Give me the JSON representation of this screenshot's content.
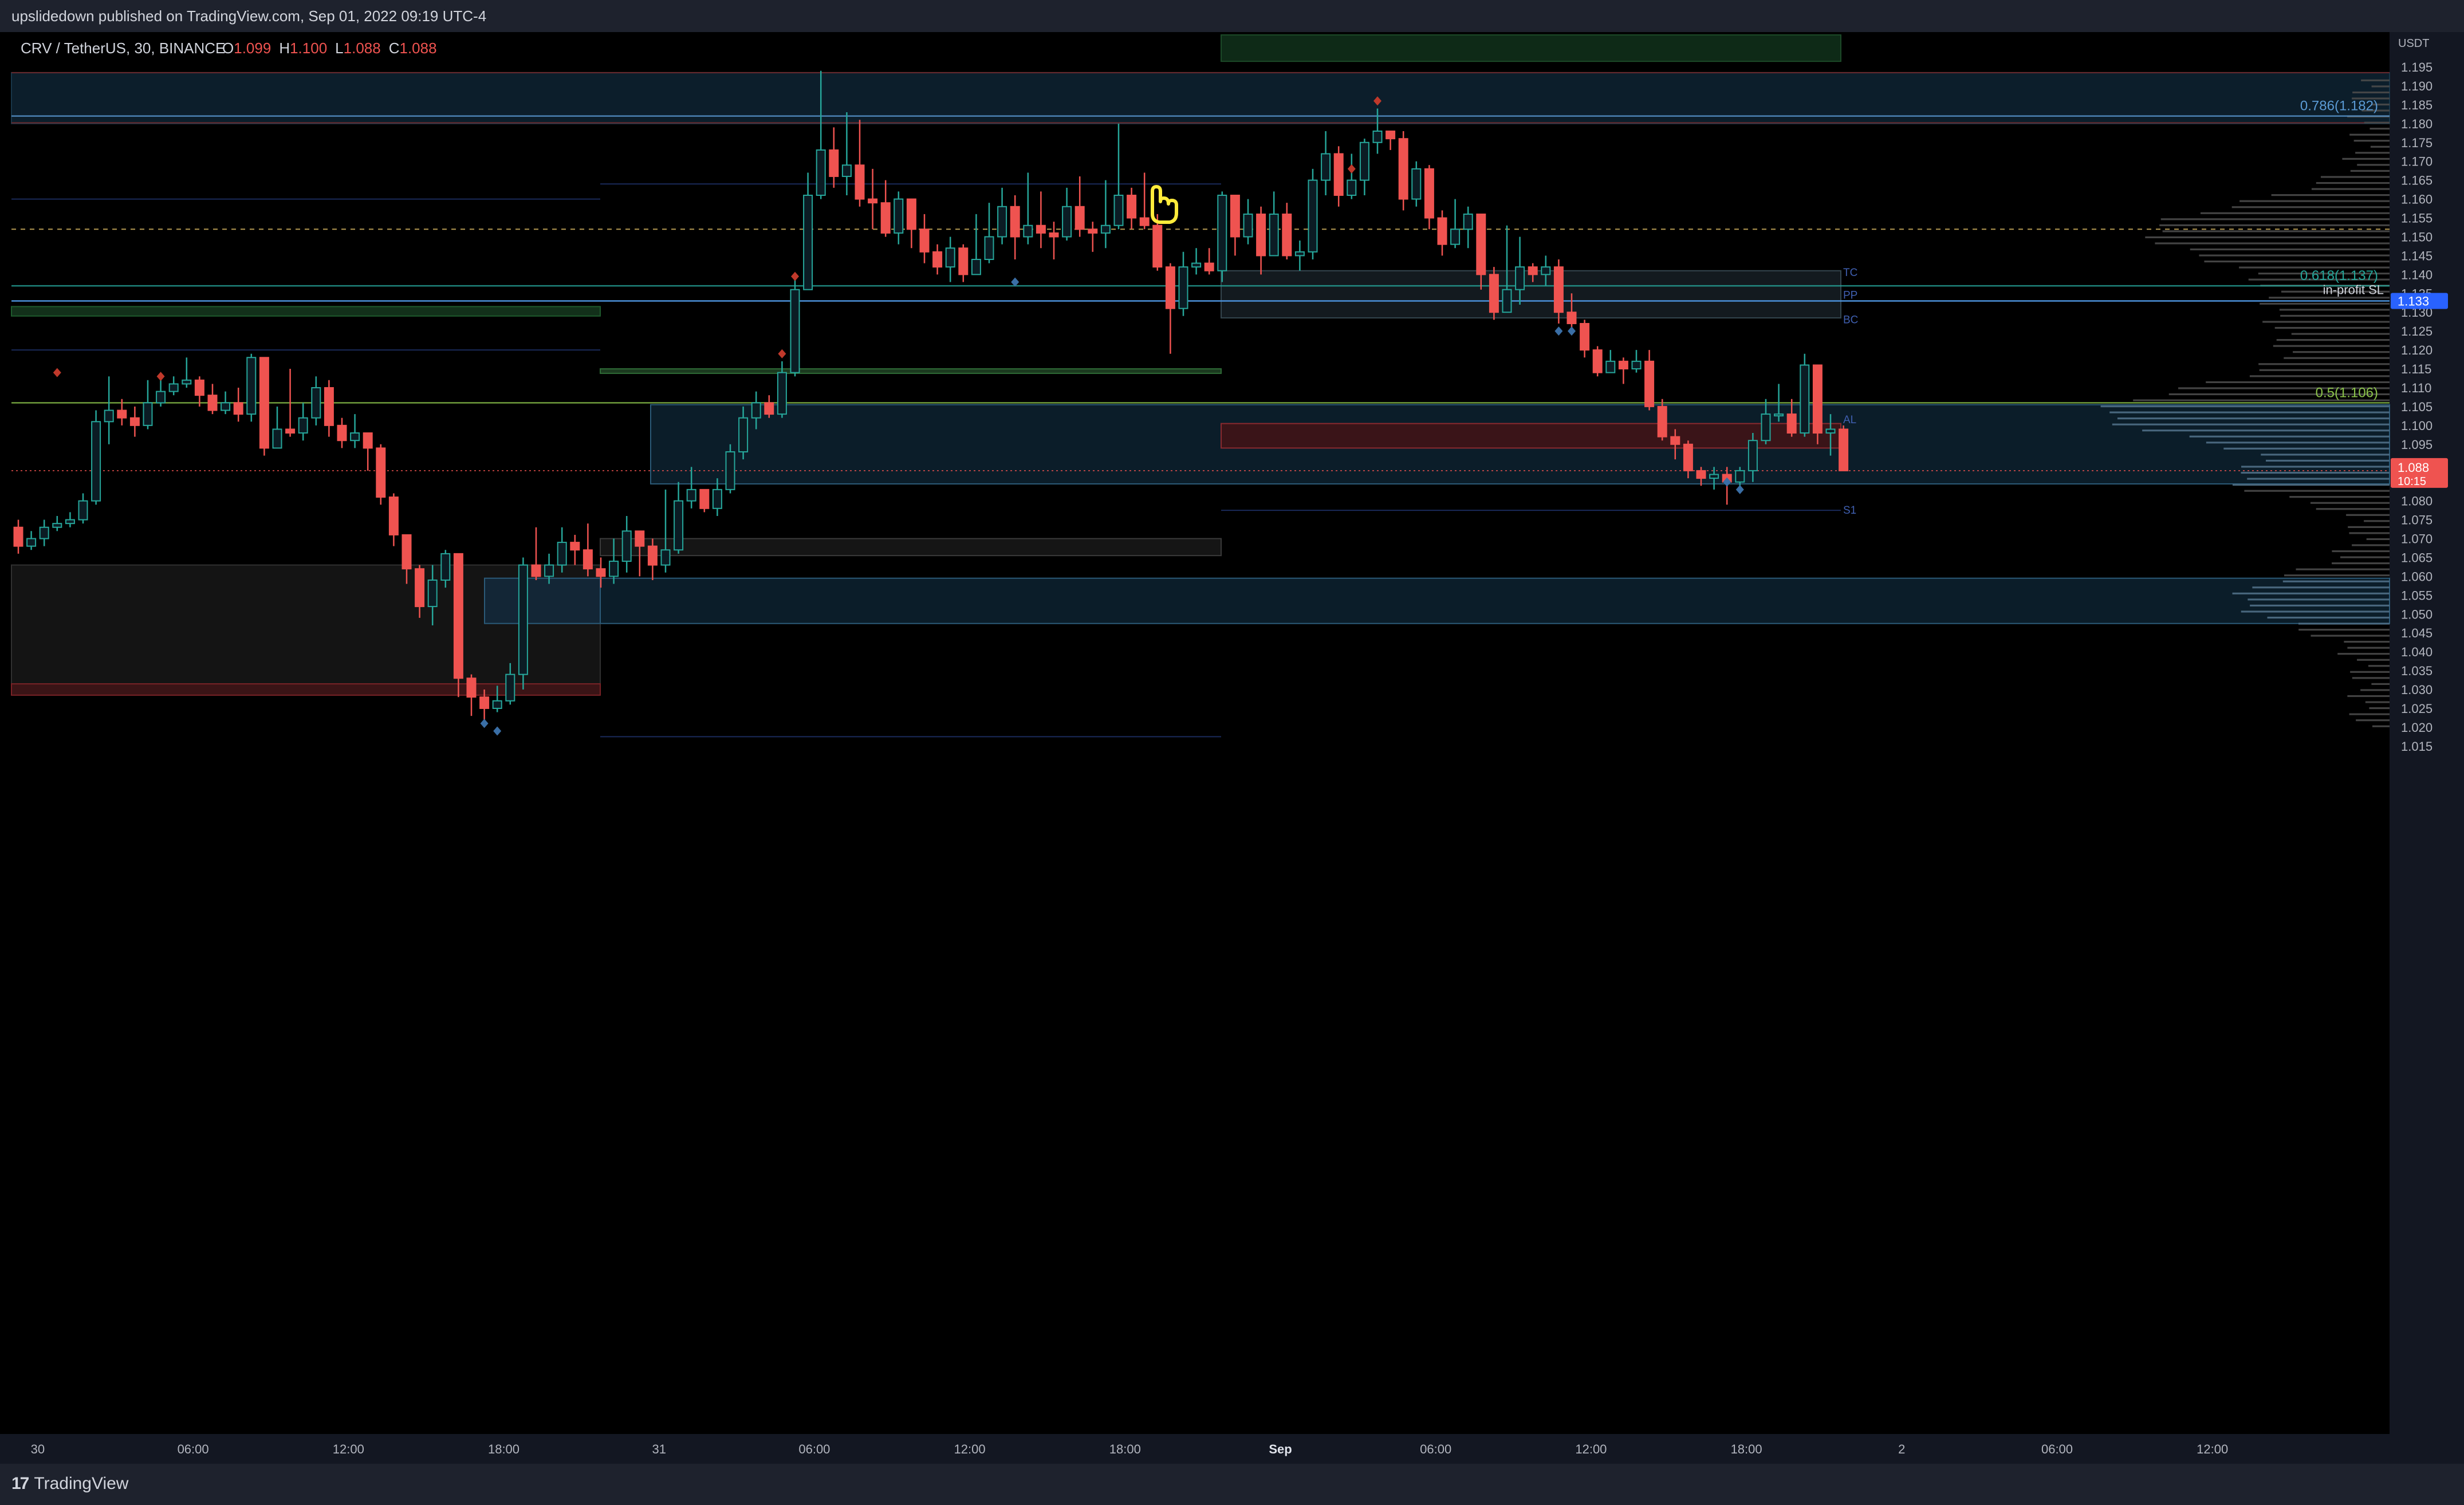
{
  "header": {
    "published": "upslidedown published on TradingView.com, Sep 01, 2022 09:19 UTC-4"
  },
  "legend": {
    "symbol": "CRV / TetherUS, 30, BINANCE",
    "o_label": "O",
    "o_value": "1.099",
    "h_label": "H",
    "h_value": "1.100",
    "l_label": "L",
    "l_value": "1.088",
    "c_label": "C",
    "c_value": "1.088"
  },
  "footer": {
    "brand": "TradingView"
  },
  "colors": {
    "up": "#26a69a",
    "down": "#ef5350",
    "bg": "#000000",
    "panel": "#131722",
    "text": "#b2b5be",
    "blue_zone": "#0d2433",
    "blue_line": "#5b8fb9"
  },
  "chart_data": {
    "type": "candlestick",
    "currency": "USDT",
    "ylim": [
      1.0125,
      1.1975
    ],
    "y_ticks": [
      "1.195",
      "1.190",
      "1.185",
      "1.180",
      "1.175",
      "1.170",
      "1.165",
      "1.160",
      "1.155",
      "1.150",
      "1.145",
      "1.140",
      "1.135",
      "1.130",
      "1.125",
      "1.120",
      "1.115",
      "1.110",
      "1.105",
      "1.100",
      "1.095",
      "1.090",
      "1.085",
      "1.080",
      "1.075",
      "1.070",
      "1.065",
      "1.060",
      "1.055",
      "1.050",
      "1.045",
      "1.040",
      "1.035",
      "1.030",
      "1.025",
      "1.020",
      "1.015"
    ],
    "x_ticks": [
      {
        "label": "30",
        "i": 1.5,
        "bold": false
      },
      {
        "label": "06:00",
        "i": 13.5,
        "bold": false
      },
      {
        "label": "12:00",
        "i": 25.5,
        "bold": false
      },
      {
        "label": "18:00",
        "i": 37.5,
        "bold": false
      },
      {
        "label": "31",
        "i": 49.5,
        "bold": false
      },
      {
        "label": "06:00",
        "i": 61.5,
        "bold": false
      },
      {
        "label": "12:00",
        "i": 73.5,
        "bold": false
      },
      {
        "label": "18:00",
        "i": 85.5,
        "bold": false
      },
      {
        "label": "Sep",
        "i": 97.5,
        "bold": true
      },
      {
        "label": "06:00",
        "i": 109.5,
        "bold": false
      },
      {
        "label": "12:00",
        "i": 121.5,
        "bold": false
      },
      {
        "label": "18:00",
        "i": 133.5,
        "bold": false
      },
      {
        "label": "2",
        "i": 145.5,
        "bold": false
      },
      {
        "label": "06:00",
        "i": 157.5,
        "bold": false
      },
      {
        "label": "12:00",
        "i": 169.5,
        "bold": false
      }
    ],
    "candles": [
      [
        1.073,
        1.068,
        1.075,
        1.066
      ],
      [
        1.068,
        1.07,
        1.072,
        1.067
      ],
      [
        1.07,
        1.073,
        1.075,
        1.068
      ],
      [
        1.073,
        1.074,
        1.076,
        1.072
      ],
      [
        1.074,
        1.075,
        1.077,
        1.073
      ],
      [
        1.075,
        1.08,
        1.082,
        1.074
      ],
      [
        1.08,
        1.101,
        1.104,
        1.079
      ],
      [
        1.101,
        1.104,
        1.113,
        1.095
      ],
      [
        1.104,
        1.102,
        1.107,
        1.1
      ],
      [
        1.102,
        1.1,
        1.105,
        1.097
      ],
      [
        1.1,
        1.106,
        1.112,
        1.099
      ],
      [
        1.106,
        1.109,
        1.113,
        1.105
      ],
      [
        1.109,
        1.111,
        1.113,
        1.108
      ],
      [
        1.111,
        1.112,
        1.118,
        1.11
      ],
      [
        1.112,
        1.108,
        1.113,
        1.105
      ],
      [
        1.108,
        1.104,
        1.111,
        1.103
      ],
      [
        1.104,
        1.106,
        1.109,
        1.103
      ],
      [
        1.106,
        1.103,
        1.11,
        1.101
      ],
      [
        1.103,
        1.118,
        1.119,
        1.101
      ],
      [
        1.118,
        1.094,
        1.117,
        1.092
      ],
      [
        1.094,
        1.099,
        1.105,
        1.096
      ],
      [
        1.099,
        1.098,
        1.115,
        1.097
      ],
      [
        1.098,
        1.102,
        1.106,
        1.096
      ],
      [
        1.102,
        1.11,
        1.113,
        1.1
      ],
      [
        1.11,
        1.1,
        1.112,
        1.097
      ],
      [
        1.1,
        1.096,
        1.102,
        1.094
      ],
      [
        1.096,
        1.098,
        1.103,
        1.094
      ],
      [
        1.098,
        1.094,
        1.098,
        1.088
      ],
      [
        1.094,
        1.081,
        1.095,
        1.079
      ],
      [
        1.081,
        1.071,
        1.082,
        1.068
      ],
      [
        1.071,
        1.062,
        1.071,
        1.058
      ],
      [
        1.062,
        1.052,
        1.063,
        1.049
      ],
      [
        1.052,
        1.059,
        1.063,
        1.047
      ],
      [
        1.059,
        1.066,
        1.067,
        1.057
      ],
      [
        1.066,
        1.033,
        1.066,
        1.028
      ],
      [
        1.033,
        1.028,
        1.034,
        1.023
      ],
      [
        1.028,
        1.025,
        1.03,
        1.022
      ],
      [
        1.025,
        1.027,
        1.031,
        1.024
      ],
      [
        1.027,
        1.034,
        1.037,
        1.026
      ],
      [
        1.034,
        1.063,
        1.065,
        1.03
      ],
      [
        1.063,
        1.06,
        1.073,
        1.059
      ],
      [
        1.06,
        1.063,
        1.066,
        1.058
      ],
      [
        1.063,
        1.069,
        1.073,
        1.061
      ],
      [
        1.069,
        1.067,
        1.071,
        1.063
      ],
      [
        1.067,
        1.062,
        1.074,
        1.06
      ],
      [
        1.062,
        1.06,
        1.065,
        1.057
      ],
      [
        1.06,
        1.064,
        1.07,
        1.058
      ],
      [
        1.064,
        1.072,
        1.076,
        1.061
      ],
      [
        1.072,
        1.068,
        1.072,
        1.06
      ],
      [
        1.068,
        1.063,
        1.07,
        1.059
      ],
      [
        1.063,
        1.067,
        1.083,
        1.061
      ],
      [
        1.067,
        1.08,
        1.085,
        1.066
      ],
      [
        1.08,
        1.083,
        1.089,
        1.078
      ],
      [
        1.083,
        1.078,
        1.083,
        1.077
      ],
      [
        1.078,
        1.083,
        1.086,
        1.076
      ],
      [
        1.083,
        1.093,
        1.095,
        1.082
      ],
      [
        1.093,
        1.102,
        1.105,
        1.091
      ],
      [
        1.102,
        1.106,
        1.109,
        1.099
      ],
      [
        1.106,
        1.103,
        1.108,
        1.102
      ],
      [
        1.103,
        1.114,
        1.117,
        1.102
      ],
      [
        1.114,
        1.136,
        1.139,
        1.113
      ],
      [
        1.136,
        1.161,
        1.167,
        1.137
      ],
      [
        1.161,
        1.173,
        1.194,
        1.16
      ],
      [
        1.173,
        1.166,
        1.179,
        1.163
      ],
      [
        1.166,
        1.169,
        1.183,
        1.161
      ],
      [
        1.169,
        1.16,
        1.181,
        1.158
      ],
      [
        1.16,
        1.159,
        1.168,
        1.152
      ],
      [
        1.159,
        1.151,
        1.165,
        1.15
      ],
      [
        1.151,
        1.16,
        1.162,
        1.148
      ],
      [
        1.16,
        1.152,
        1.158,
        1.147
      ],
      [
        1.152,
        1.146,
        1.156,
        1.143
      ],
      [
        1.146,
        1.142,
        1.148,
        1.14
      ],
      [
        1.142,
        1.147,
        1.15,
        1.138
      ],
      [
        1.147,
        1.14,
        1.148,
        1.138
      ],
      [
        1.14,
        1.144,
        1.156,
        1.141
      ],
      [
        1.144,
        1.15,
        1.159,
        1.143
      ],
      [
        1.15,
        1.158,
        1.163,
        1.148
      ],
      [
        1.158,
        1.15,
        1.161,
        1.144
      ],
      [
        1.15,
        1.153,
        1.167,
        1.148
      ],
      [
        1.153,
        1.151,
        1.162,
        1.147
      ],
      [
        1.151,
        1.15,
        1.154,
        1.144
      ],
      [
        1.15,
        1.158,
        1.163,
        1.149
      ],
      [
        1.158,
        1.152,
        1.166,
        1.15
      ],
      [
        1.152,
        1.151,
        1.154,
        1.146
      ],
      [
        1.151,
        1.153,
        1.165,
        1.147
      ],
      [
        1.153,
        1.161,
        1.18,
        1.152
      ],
      [
        1.161,
        1.155,
        1.163,
        1.152
      ],
      [
        1.155,
        1.153,
        1.167,
        1.152
      ],
      [
        1.153,
        1.142,
        1.156,
        1.141
      ],
      [
        1.142,
        1.131,
        1.143,
        1.119
      ],
      [
        1.131,
        1.142,
        1.146,
        1.129
      ],
      [
        1.142,
        1.143,
        1.147,
        1.14
      ],
      [
        1.143,
        1.141,
        1.147,
        1.14
      ],
      [
        1.141,
        1.161,
        1.162,
        1.138
      ],
      [
        1.161,
        1.15,
        1.161,
        1.145
      ],
      [
        1.15,
        1.156,
        1.16,
        1.148
      ],
      [
        1.156,
        1.145,
        1.158,
        1.14
      ],
      [
        1.145,
        1.156,
        1.162,
        1.145
      ],
      [
        1.156,
        1.145,
        1.159,
        1.144
      ],
      [
        1.145,
        1.146,
        1.149,
        1.141
      ],
      [
        1.146,
        1.165,
        1.168,
        1.144
      ],
      [
        1.165,
        1.172,
        1.178,
        1.161
      ],
      [
        1.172,
        1.161,
        1.174,
        1.158
      ],
      [
        1.161,
        1.165,
        1.172,
        1.16
      ],
      [
        1.165,
        1.175,
        1.176,
        1.161
      ],
      [
        1.175,
        1.178,
        1.184,
        1.172
      ],
      [
        1.178,
        1.176,
        1.178,
        1.173
      ],
      [
        1.176,
        1.16,
        1.178,
        1.157
      ],
      [
        1.16,
        1.168,
        1.17,
        1.158
      ],
      [
        1.168,
        1.155,
        1.169,
        1.152
      ],
      [
        1.155,
        1.148,
        1.157,
        1.145
      ],
      [
        1.148,
        1.152,
        1.16,
        1.147
      ],
      [
        1.152,
        1.156,
        1.158,
        1.147
      ],
      [
        1.156,
        1.14,
        1.156,
        1.136
      ],
      [
        1.14,
        1.13,
        1.142,
        1.128
      ],
      [
        1.13,
        1.136,
        1.153,
        1.134
      ],
      [
        1.136,
        1.142,
        1.15,
        1.132
      ],
      [
        1.142,
        1.14,
        1.143,
        1.138
      ],
      [
        1.14,
        1.142,
        1.145,
        1.137
      ],
      [
        1.142,
        1.13,
        1.144,
        1.127
      ],
      [
        1.13,
        1.127,
        1.135,
        1.125
      ],
      [
        1.127,
        1.12,
        1.128,
        1.118
      ],
      [
        1.12,
        1.114,
        1.121,
        1.113
      ],
      [
        1.114,
        1.117,
        1.12,
        1.114
      ],
      [
        1.117,
        1.115,
        1.118,
        1.111
      ],
      [
        1.115,
        1.117,
        1.12,
        1.114
      ],
      [
        1.117,
        1.105,
        1.12,
        1.104
      ],
      [
        1.105,
        1.097,
        1.107,
        1.096
      ],
      [
        1.097,
        1.095,
        1.099,
        1.091
      ],
      [
        1.095,
        1.088,
        1.096,
        1.086
      ],
      [
        1.088,
        1.086,
        1.089,
        1.084
      ],
      [
        1.086,
        1.087,
        1.089,
        1.083
      ],
      [
        1.087,
        1.085,
        1.089,
        1.079
      ],
      [
        1.085,
        1.088,
        1.089,
        1.084
      ],
      [
        1.088,
        1.096,
        1.098,
        1.085
      ],
      [
        1.096,
        1.103,
        1.107,
        1.095
      ],
      [
        1.103,
        1.103,
        1.111,
        1.101
      ],
      [
        1.103,
        1.098,
        1.107,
        1.097
      ],
      [
        1.098,
        1.116,
        1.119,
        1.097
      ],
      [
        1.116,
        1.098,
        1.116,
        1.095
      ],
      [
        1.098,
        1.099,
        1.103,
        1.092
      ],
      [
        1.099,
        1.088,
        1.1,
        1.088
      ]
    ],
    "price_levels": [
      {
        "name": "fib-0786",
        "price": 1.182,
        "label": "0.786(1.182)",
        "color": "#5b9bd5"
      },
      {
        "name": "fib-0618",
        "price": 1.137,
        "label": "0.618(1.137)",
        "color": "#26a69a"
      },
      {
        "name": "fib-05",
        "price": 1.106,
        "label": "0.5(1.106)",
        "color": "#8bc34a"
      },
      {
        "name": "in-profit-sl",
        "price": 1.133,
        "label": "in-profit SL",
        "color": "#4a90d9"
      }
    ],
    "pivot_labels": [
      {
        "label": "TC",
        "price": 1.1405
      },
      {
        "label": "PP",
        "price": 1.1345
      },
      {
        "label": "BC",
        "price": 1.128
      },
      {
        "label": "AL",
        "price": 1.1015
      },
      {
        "label": "S1",
        "price": 1.0775
      }
    ],
    "current_price": {
      "value": "1.088",
      "countdown": "10:15"
    },
    "markers": [
      {
        "i": 3,
        "price": 1.114,
        "kind": "sell"
      },
      {
        "i": 11,
        "price": 1.113,
        "kind": "sell"
      },
      {
        "i": 60,
        "price": 1.1395,
        "kind": "sell"
      },
      {
        "i": 59,
        "price": 1.119,
        "kind": "sell"
      },
      {
        "i": 105,
        "price": 1.186,
        "kind": "sell"
      },
      {
        "i": 103,
        "price": 1.168,
        "kind": "sell"
      },
      {
        "i": 36,
        "price": 1.021,
        "kind": "buy"
      },
      {
        "i": 37,
        "price": 1.019,
        "kind": "buy"
      },
      {
        "i": 77,
        "price": 1.138,
        "kind": "buy"
      },
      {
        "i": 119,
        "price": 1.125,
        "kind": "buy"
      },
      {
        "i": 120,
        "price": 1.125,
        "kind": "buy"
      },
      {
        "i": 132,
        "price": 1.085,
        "kind": "buy"
      },
      {
        "i": 133,
        "price": 1.083,
        "kind": "buy"
      }
    ]
  }
}
